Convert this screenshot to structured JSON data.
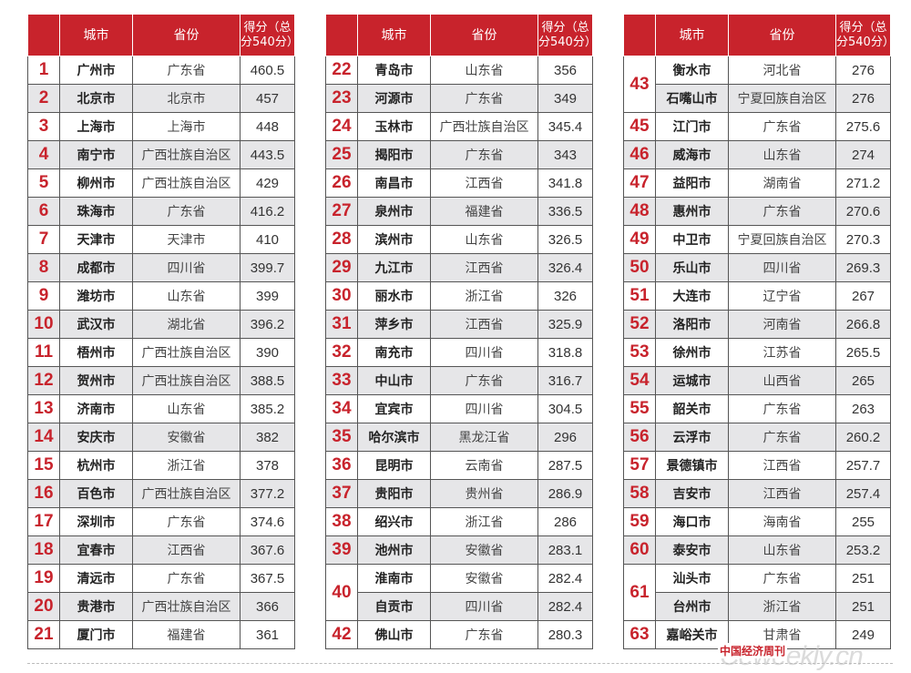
{
  "headers": {
    "rank": "",
    "city": "城市",
    "province": "省份",
    "score_line1": "得分（总",
    "score_line2": "分540分）"
  },
  "table1": [
    {
      "rank": "1",
      "city": "广州市",
      "province": "广东省",
      "score": "460.5"
    },
    {
      "rank": "2",
      "city": "北京市",
      "province": "北京市",
      "score": "457"
    },
    {
      "rank": "3",
      "city": "上海市",
      "province": "上海市",
      "score": "448"
    },
    {
      "rank": "4",
      "city": "南宁市",
      "province": "广西壮族自治区",
      "score": "443.5"
    },
    {
      "rank": "5",
      "city": "柳州市",
      "province": "广西壮族自治区",
      "score": "429"
    },
    {
      "rank": "6",
      "city": "珠海市",
      "province": "广东省",
      "score": "416.2"
    },
    {
      "rank": "7",
      "city": "天津市",
      "province": "天津市",
      "score": "410"
    },
    {
      "rank": "8",
      "city": "成都市",
      "province": "四川省",
      "score": "399.7"
    },
    {
      "rank": "9",
      "city": "潍坊市",
      "province": "山东省",
      "score": "399"
    },
    {
      "rank": "10",
      "city": "武汉市",
      "province": "湖北省",
      "score": "396.2"
    },
    {
      "rank": "11",
      "city": "梧州市",
      "province": "广西壮族自治区",
      "score": "390"
    },
    {
      "rank": "12",
      "city": "贺州市",
      "province": "广西壮族自治区",
      "score": "388.5"
    },
    {
      "rank": "13",
      "city": "济南市",
      "province": "山东省",
      "score": "385.2"
    },
    {
      "rank": "14",
      "city": "安庆市",
      "province": "安徽省",
      "score": "382"
    },
    {
      "rank": "15",
      "city": "杭州市",
      "province": "浙江省",
      "score": "378"
    },
    {
      "rank": "16",
      "city": "百色市",
      "province": "广西壮族自治区",
      "score": "377.2"
    },
    {
      "rank": "17",
      "city": "深圳市",
      "province": "广东省",
      "score": "374.6"
    },
    {
      "rank": "18",
      "city": "宜春市",
      "province": "江西省",
      "score": "367.6"
    },
    {
      "rank": "19",
      "city": "清远市",
      "province": "广东省",
      "score": "367.5"
    },
    {
      "rank": "20",
      "city": "贵港市",
      "province": "广西壮族自治区",
      "score": "366"
    },
    {
      "rank": "21",
      "city": "厦门市",
      "province": "福建省",
      "score": "361"
    }
  ],
  "table2": [
    {
      "rank": "22",
      "city": "青岛市",
      "province": "山东省",
      "score": "356"
    },
    {
      "rank": "23",
      "city": "河源市",
      "province": "广东省",
      "score": "349"
    },
    {
      "rank": "24",
      "city": "玉林市",
      "province": "广西壮族自治区",
      "score": "345.4"
    },
    {
      "rank": "25",
      "city": "揭阳市",
      "province": "广东省",
      "score": "343"
    },
    {
      "rank": "26",
      "city": "南昌市",
      "province": "江西省",
      "score": "341.8"
    },
    {
      "rank": "27",
      "city": "泉州市",
      "province": "福建省",
      "score": "336.5"
    },
    {
      "rank": "28",
      "city": "滨州市",
      "province": "山东省",
      "score": "326.5"
    },
    {
      "rank": "29",
      "city": "九江市",
      "province": "江西省",
      "score": "326.4"
    },
    {
      "rank": "30",
      "city": "丽水市",
      "province": "浙江省",
      "score": "326"
    },
    {
      "rank": "31",
      "city": "萍乡市",
      "province": "江西省",
      "score": "325.9"
    },
    {
      "rank": "32",
      "city": "南充市",
      "province": "四川省",
      "score": "318.8"
    },
    {
      "rank": "33",
      "city": "中山市",
      "province": "广东省",
      "score": "316.7"
    },
    {
      "rank": "34",
      "city": "宜宾市",
      "province": "四川省",
      "score": "304.5"
    },
    {
      "rank": "35",
      "city": "哈尔滨市",
      "province": "黑龙江省",
      "score": "296"
    },
    {
      "rank": "36",
      "city": "昆明市",
      "province": "云南省",
      "score": "287.5"
    },
    {
      "rank": "37",
      "city": "贵阳市",
      "province": "贵州省",
      "score": "286.9"
    },
    {
      "rank": "38",
      "city": "绍兴市",
      "province": "浙江省",
      "score": "286"
    },
    {
      "rank": "39",
      "city": "池州市",
      "province": "安徽省",
      "score": "283.1"
    },
    {
      "rank": "40",
      "city": "淮南市",
      "province": "安徽省",
      "score": "282.4"
    },
    {
      "rank": "",
      "city": "自贡市",
      "province": "四川省",
      "score": "282.4"
    },
    {
      "rank": "42",
      "city": "佛山市",
      "province": "广东省",
      "score": "280.3"
    }
  ],
  "table3": [
    {
      "rank": "43",
      "city": "衡水市",
      "province": "河北省",
      "score": "276"
    },
    {
      "rank": "",
      "city": "石嘴山市",
      "province": "宁夏回族自治区",
      "score": "276"
    },
    {
      "rank": "45",
      "city": "江门市",
      "province": "广东省",
      "score": "275.6"
    },
    {
      "rank": "46",
      "city": "威海市",
      "province": "山东省",
      "score": "274"
    },
    {
      "rank": "47",
      "city": "益阳市",
      "province": "湖南省",
      "score": "271.2"
    },
    {
      "rank": "48",
      "city": "惠州市",
      "province": "广东省",
      "score": "270.6"
    },
    {
      "rank": "49",
      "city": "中卫市",
      "province": "宁夏回族自治区",
      "score": "270.3"
    },
    {
      "rank": "50",
      "city": "乐山市",
      "province": "四川省",
      "score": "269.3"
    },
    {
      "rank": "51",
      "city": "大连市",
      "province": "辽宁省",
      "score": "267"
    },
    {
      "rank": "52",
      "city": "洛阳市",
      "province": "河南省",
      "score": "266.8"
    },
    {
      "rank": "53",
      "city": "徐州市",
      "province": "江苏省",
      "score": "265.5"
    },
    {
      "rank": "54",
      "city": "运城市",
      "province": "山西省",
      "score": "265"
    },
    {
      "rank": "55",
      "city": "韶关市",
      "province": "广东省",
      "score": "263"
    },
    {
      "rank": "56",
      "city": "云浮市",
      "province": "广东省",
      "score": "260.2"
    },
    {
      "rank": "57",
      "city": "景德镇市",
      "province": "江西省",
      "score": "257.7"
    },
    {
      "rank": "58",
      "city": "吉安市",
      "province": "江西省",
      "score": "257.4"
    },
    {
      "rank": "59",
      "city": "海口市",
      "province": "海南省",
      "score": "255"
    },
    {
      "rank": "60",
      "city": "泰安市",
      "province": "山东省",
      "score": "253.2"
    },
    {
      "rank": "61",
      "city": "汕头市",
      "province": "广东省",
      "score": "251"
    },
    {
      "rank": "",
      "city": "台州市",
      "province": "浙江省",
      "score": "251"
    },
    {
      "rank": "63",
      "city": "嘉峪关市",
      "province": "甘肃省",
      "score": "249"
    }
  ],
  "watermark": {
    "text": "中国经济周刊",
    "logo": "Ceweekly.cn"
  },
  "colors": {
    "accent": "#c8232c",
    "shade": "#e6e6e8"
  }
}
